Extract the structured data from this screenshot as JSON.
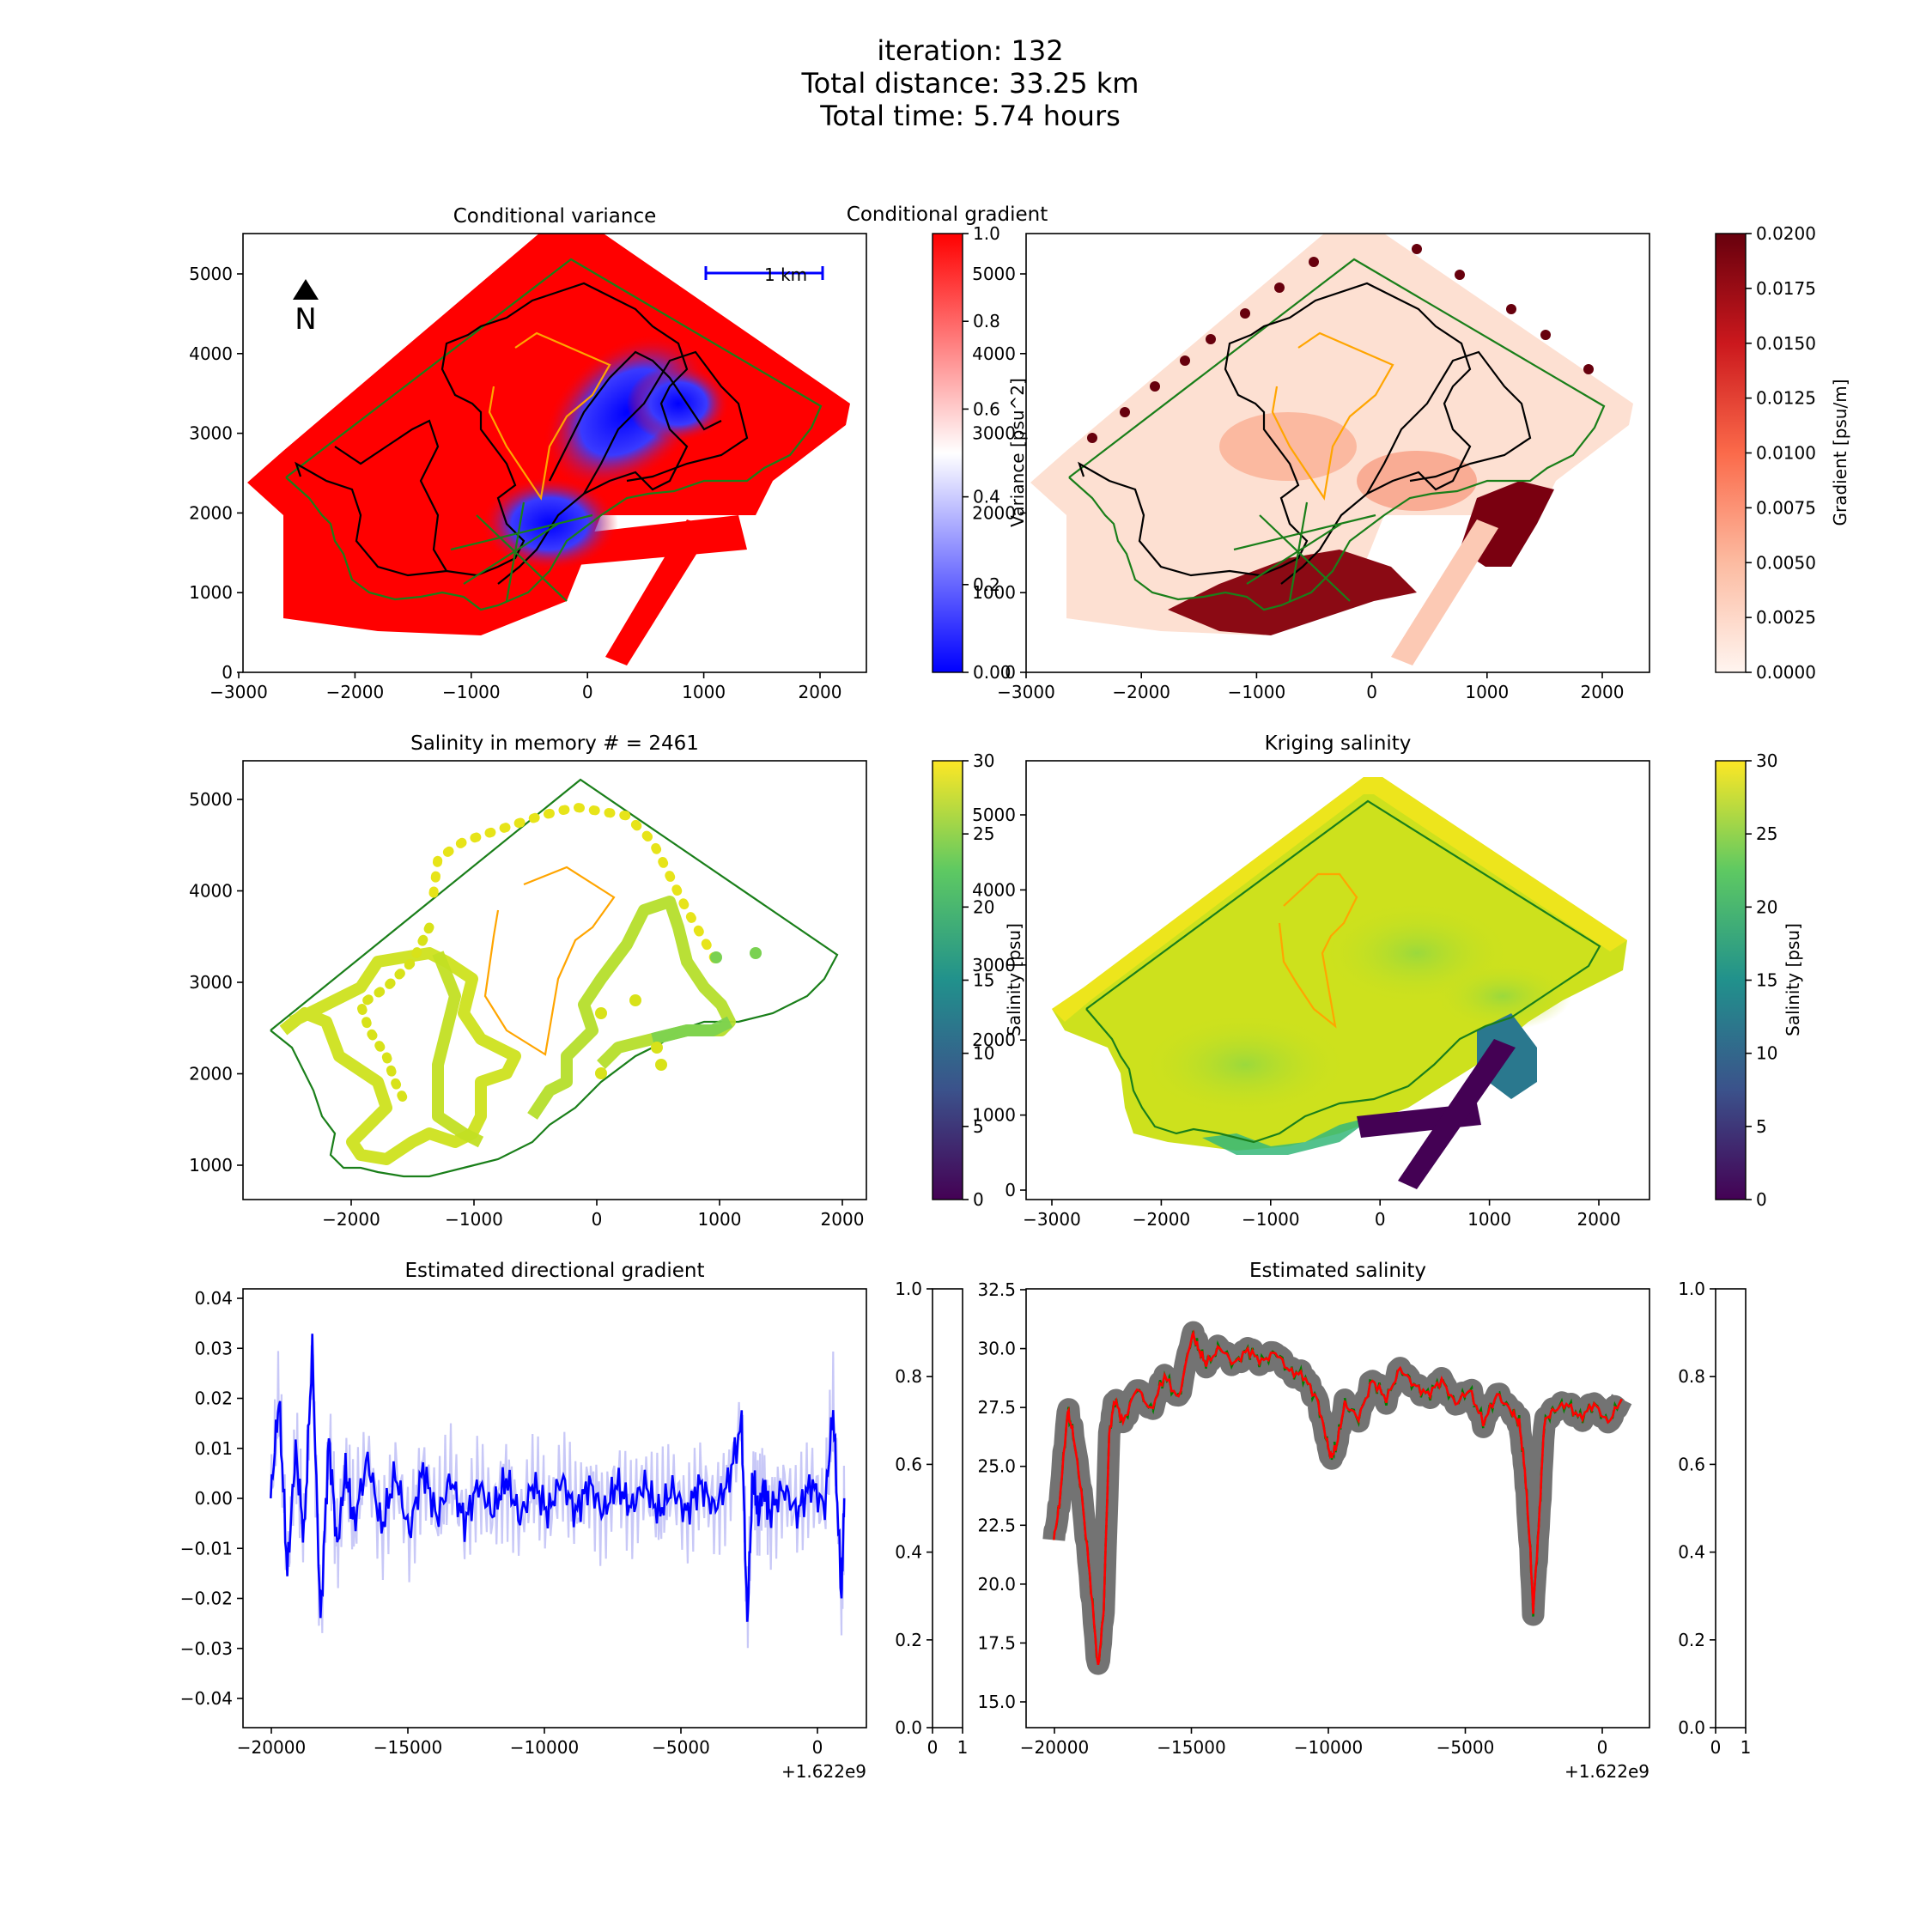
{
  "suptitle": [
    "iteration: 132",
    "Total distance: 33.25 km",
    "Total time: 5.74 hours"
  ],
  "colors": {
    "boundary": "#1a7f1a",
    "orange_contour": "#ffa500",
    "path": "#000000",
    "gradient_line": "#0000ff",
    "estimate_line": "#ff0000",
    "green_dashed": "#008000"
  },
  "panels": {
    "variance": {
      "title": "Conditional variance",
      "north_label": "N",
      "scale_label": "1 km",
      "xticks": [
        "−3000",
        "−2000",
        "−1000",
        "0",
        "1000",
        "2000"
      ],
      "yticks": [
        "0",
        "1000",
        "2000",
        "3000",
        "4000",
        "5000"
      ],
      "colorbar": {
        "label": "Variance [psu^2]",
        "ticks": [
          "0.00",
          "0.2",
          "0.4",
          "0.6",
          "0.8",
          "1.0"
        ],
        "colormap": "bwr"
      }
    },
    "gradient": {
      "title": "Conditional gradient",
      "xticks": [
        "−3000",
        "−2000",
        "−1000",
        "0",
        "1000",
        "2000"
      ],
      "yticks": [
        "0",
        "1000",
        "2000",
        "3000",
        "4000",
        "5000"
      ],
      "colorbar": {
        "label": "Gradient [psu/m]",
        "ticks": [
          "0.0000",
          "0.0025",
          "0.0050",
          "0.0075",
          "0.0100",
          "0.0125",
          "0.0150",
          "0.0175",
          "0.0200"
        ],
        "colormap": "Reds"
      }
    },
    "memory": {
      "title": "Salinity in memory # = 2461",
      "xticks": [
        "−2000",
        "−1000",
        "0",
        "1000",
        "2000"
      ],
      "yticks": [
        "1000",
        "2000",
        "3000",
        "4000",
        "5000"
      ],
      "colorbar": {
        "label": "Salinity [psu]",
        "ticks": [
          "0",
          "5",
          "10",
          "15",
          "20",
          "25",
          "30"
        ],
        "colormap": "viridis"
      }
    },
    "kriging": {
      "title": "Kriging salinity",
      "xticks": [
        "−3000",
        "−2000",
        "−1000",
        "0",
        "1000",
        "2000"
      ],
      "yticks": [
        "0",
        "1000",
        "2000",
        "3000",
        "4000",
        "5000"
      ],
      "colorbar": {
        "label": "Salinity [psu]",
        "ticks": [
          "0",
          "5",
          "10",
          "15",
          "20",
          "25",
          "30"
        ],
        "colormap": "viridis"
      }
    },
    "dir_gradient": {
      "title": "Estimated directional gradient",
      "xticks": [
        "−20000",
        "−15000",
        "−10000",
        "−5000",
        "0"
      ],
      "yticks": [
        "−0.04",
        "−0.03",
        "−0.02",
        "−0.01",
        "0.00",
        "0.01",
        "0.02",
        "0.03",
        "0.04"
      ],
      "offset": "+1.622e9",
      "side_ticks_y": [
        "0.0",
        "0.2",
        "0.4",
        "0.6",
        "0.8",
        "1.0"
      ],
      "side_ticks_x": [
        "0",
        "1"
      ]
    },
    "est_salinity": {
      "title": "Estimated salinity",
      "xticks": [
        "−20000",
        "−15000",
        "−10000",
        "−5000",
        "0"
      ],
      "yticks": [
        "15.0",
        "17.5",
        "20.0",
        "22.5",
        "25.0",
        "27.5",
        "30.0",
        "32.5"
      ],
      "offset": "+1.622e9",
      "side_ticks_y": [
        "0.0",
        "0.2",
        "0.4",
        "0.6",
        "0.8",
        "1.0"
      ],
      "side_ticks_x": [
        "0",
        "1"
      ]
    }
  },
  "chart_data": [
    {
      "type": "heatmap",
      "title": "Conditional variance",
      "xlim": [
        -3000,
        2400
      ],
      "ylim": [
        0,
        5500
      ],
      "clim": [
        0,
        1
      ],
      "colorbar_label": "Variance [psu^2]",
      "colormap": "bwr",
      "annotations": [
        "N",
        "1 km"
      ]
    },
    {
      "type": "heatmap",
      "title": "Conditional gradient",
      "xlim": [
        -3000,
        2400
      ],
      "ylim": [
        0,
        5500
      ],
      "clim": [
        0,
        0.02
      ],
      "colorbar_label": "Gradient [psu/m]",
      "colormap": "Reds"
    },
    {
      "type": "scatter",
      "title": "Salinity in memory # = 2461",
      "xlim": [
        -2900,
        2200
      ],
      "ylim": [
        600,
        5500
      ],
      "clim": [
        0,
        30
      ],
      "colorbar_label": "Salinity [psu]",
      "colormap": "viridis"
    },
    {
      "type": "heatmap",
      "title": "Kriging salinity",
      "xlim": [
        -3000,
        2400
      ],
      "ylim": [
        0,
        5500
      ],
      "clim": [
        0,
        30
      ],
      "colorbar_label": "Salinity [psu]",
      "colormap": "viridis"
    },
    {
      "type": "line",
      "title": "Estimated directional gradient",
      "xlim": [
        -21000,
        1500
      ],
      "ylim": [
        -0.046,
        0.042
      ],
      "x_offset": "+1.622e9",
      "series": [
        {
          "x": [
            -20000,
            -19700,
            -19400,
            -19100,
            -18800,
            -18500,
            -18200,
            -17900,
            -17600,
            -17300,
            -17000,
            -16500,
            -16000,
            -15500,
            -15000,
            -14500,
            -14000,
            -13500,
            -13000,
            -12500,
            -12000,
            -11500,
            -11000,
            -10500,
            -10000,
            -9500,
            -9000,
            -8500,
            -8000,
            -7500,
            -7000,
            -6500,
            -6000,
            -5500,
            -5000,
            -4500,
            -4000,
            -3500,
            -3000,
            -2800,
            -2600,
            -2400,
            -2200,
            -2000,
            -1500,
            -1000,
            -500,
            0,
            300,
            600,
            700
          ],
          "y": [
            0.0,
            0.02,
            -0.015,
            0.01,
            -0.008,
            0.03,
            -0.025,
            0.012,
            -0.01,
            0.006,
            -0.005,
            0.008,
            -0.006,
            0.005,
            -0.007,
            0.006,
            -0.004,
            0.004,
            -0.005,
            0.003,
            -0.003,
            0.004,
            -0.004,
            0.003,
            -0.003,
            0.004,
            -0.003,
            0.003,
            -0.003,
            0.003,
            -0.002,
            0.003,
            -0.003,
            0.002,
            -0.003,
            0.003,
            -0.002,
            0.003,
            0.015,
            -0.025,
            0.005,
            -0.004,
            0.003,
            -0.003,
            0.002,
            -0.003,
            0.003,
            -0.002,
            0.018,
            -0.02,
            0.0
          ]
        }
      ]
    },
    {
      "type": "line",
      "title": "Estimated salinity",
      "xlim": [
        -21000,
        1500
      ],
      "ylim": [
        14.0,
        32.7
      ],
      "x_offset": "+1.622e9",
      "series": [
        {
          "x": [
            -20000,
            -19800,
            -19500,
            -19300,
            -19000,
            -18700,
            -18400,
            -18200,
            -18000,
            -17800,
            -17500,
            -17000,
            -16500,
            -16000,
            -15500,
            -15000,
            -14800,
            -14500,
            -14000,
            -13500,
            -13000,
            -12500,
            -12000,
            -11500,
            -11000,
            -10500,
            -10200,
            -10000,
            -9800,
            -9500,
            -9000,
            -8500,
            -8000,
            -7500,
            -7000,
            -6500,
            -6000,
            -5500,
            -5000,
            -4500,
            -4000,
            -3500,
            -3200,
            -3000,
            -2800,
            -2700,
            -2500,
            -2300,
            -2000,
            -1500,
            -1000,
            -500,
            0,
            500
          ],
          "y": [
            22.0,
            23.5,
            27.5,
            26.5,
            24.0,
            20.5,
            16.5,
            19.0,
            26.5,
            28.0,
            27.0,
            28.5,
            27.5,
            29.0,
            28.0,
            30.8,
            30.2,
            29.5,
            30.2,
            29.5,
            30.1,
            29.6,
            30.0,
            29.2,
            29.0,
            28.0,
            26.5,
            25.5,
            26.0,
            27.8,
            27.2,
            28.8,
            28.0,
            29.3,
            28.6,
            28.2,
            28.8,
            27.8,
            28.4,
            27.0,
            28.2,
            27.5,
            27.0,
            25.0,
            21.5,
            19.0,
            22.5,
            27.0,
            27.5,
            27.8,
            27.2,
            27.8,
            27.0,
            28.0
          ]
        }
      ]
    }
  ]
}
